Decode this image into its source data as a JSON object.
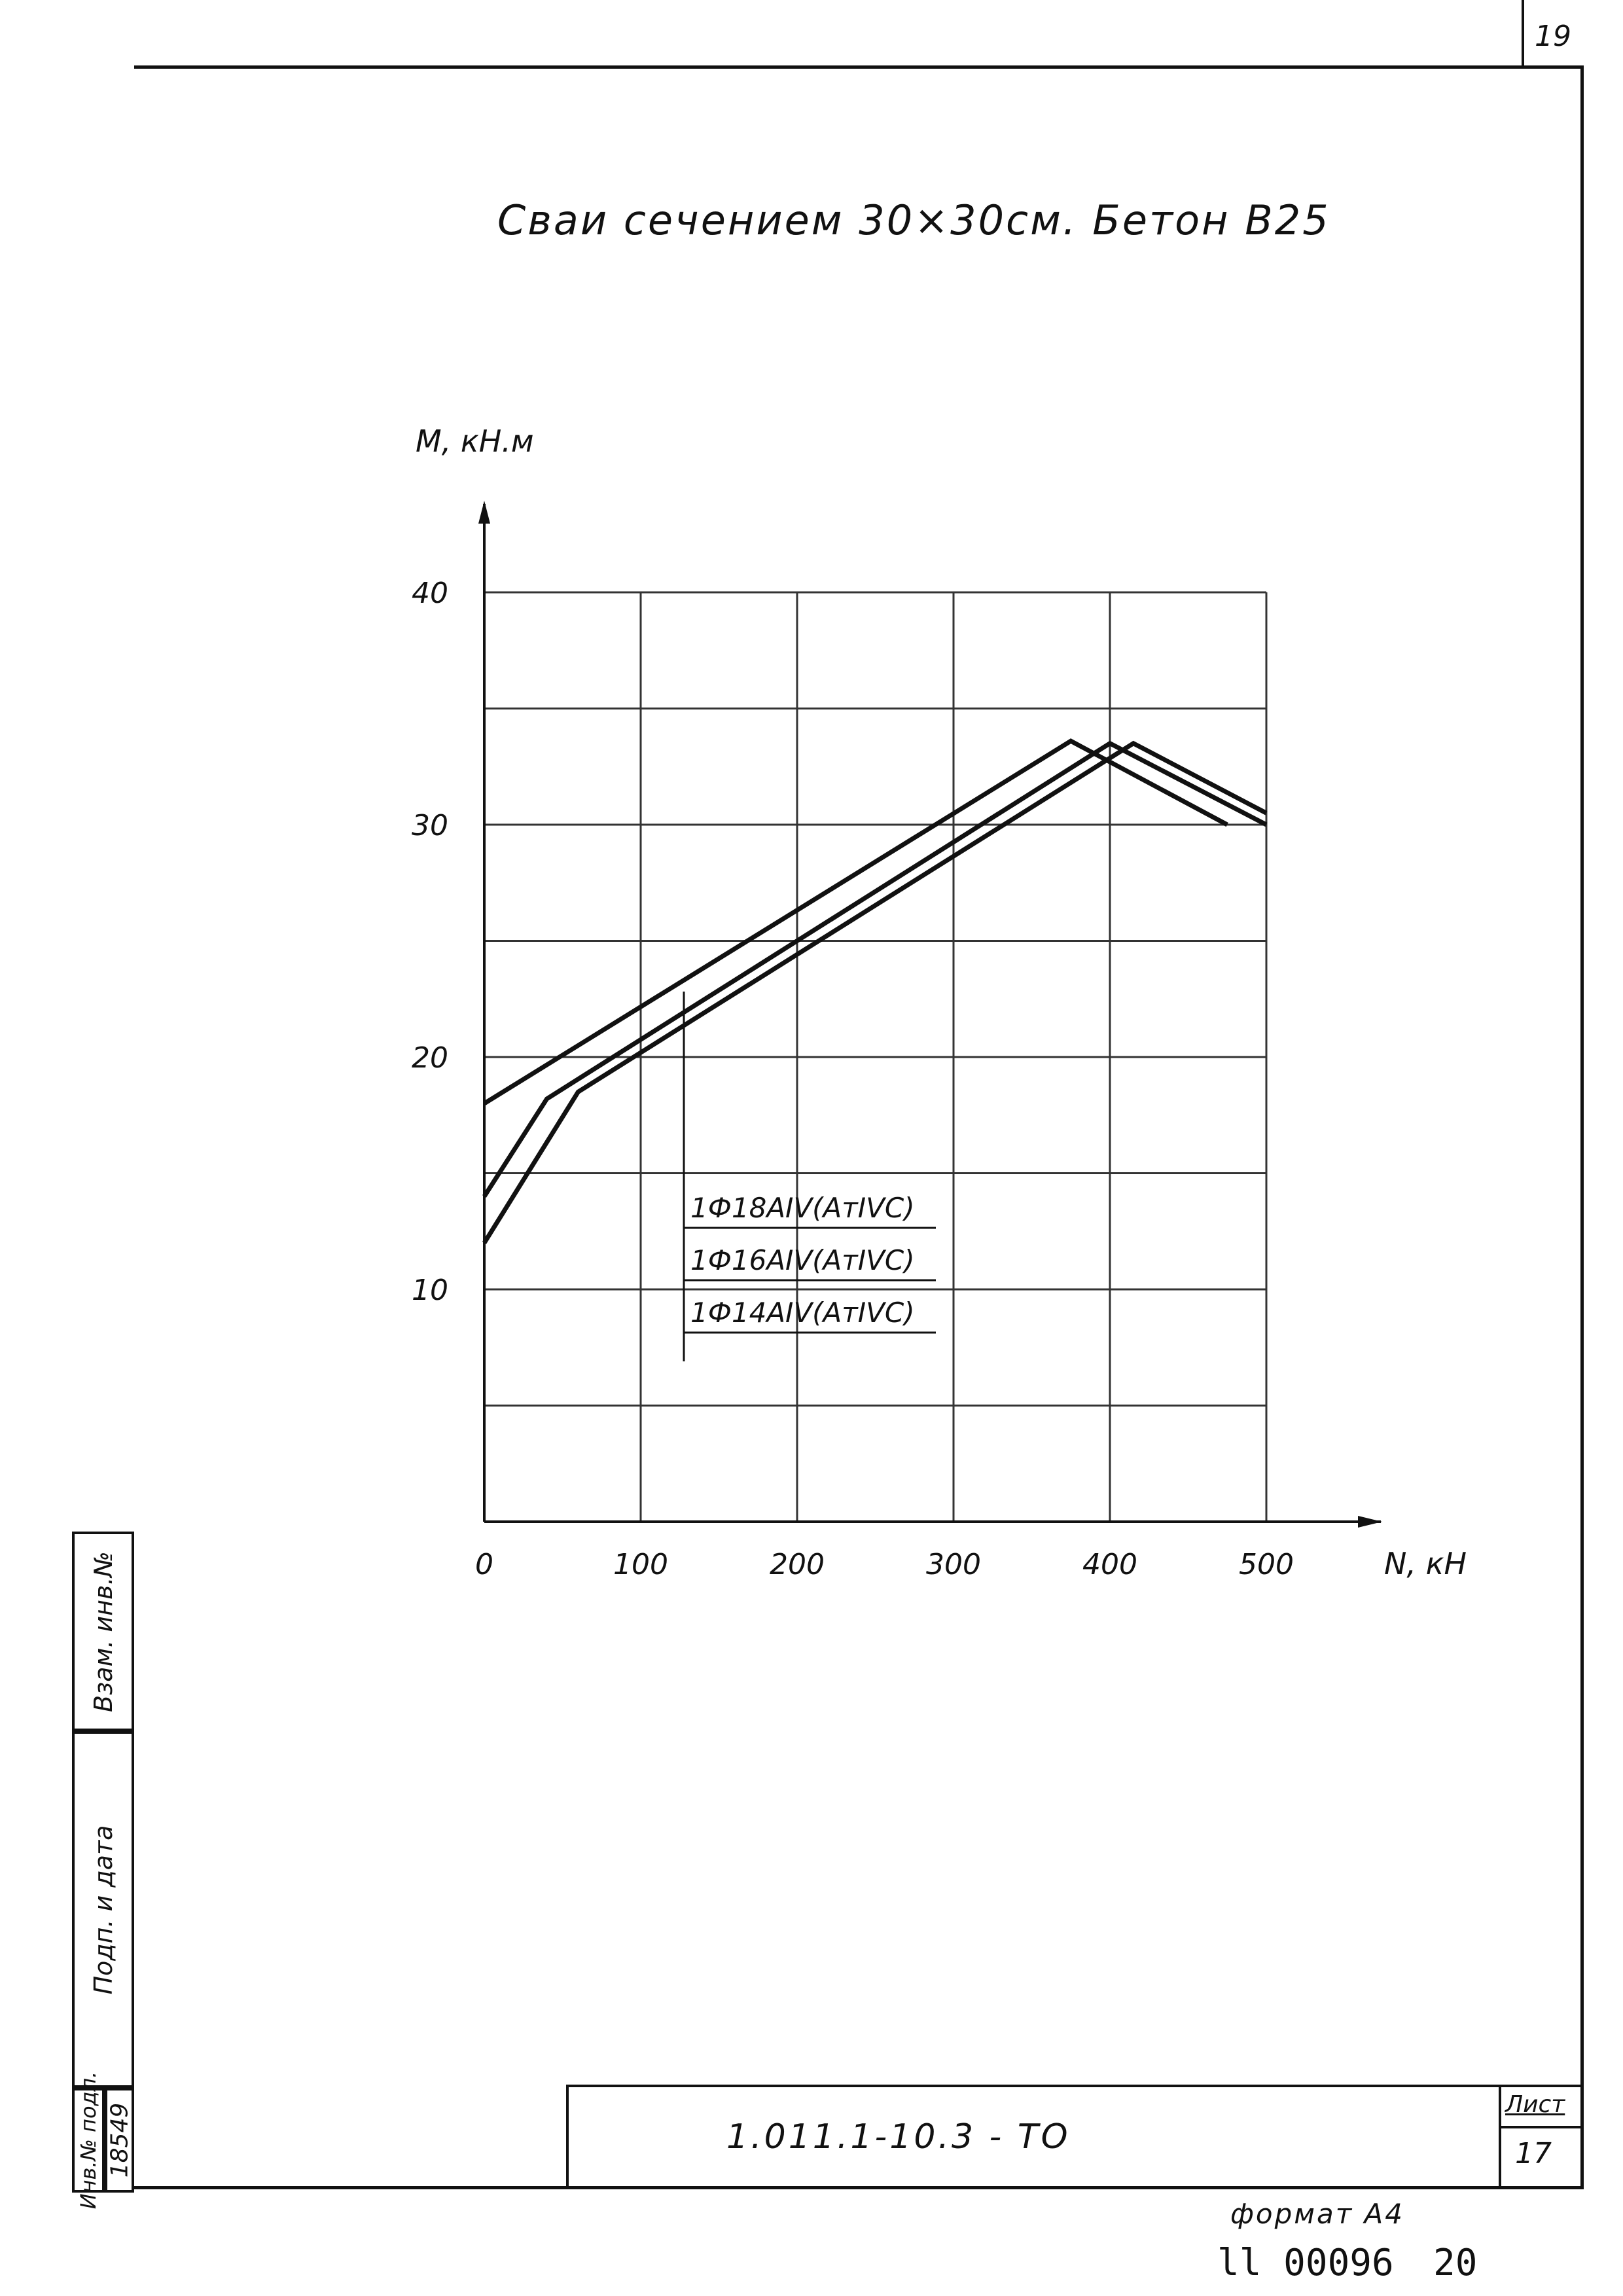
{
  "page": {
    "page_number": "19",
    "title": "Сваи сечением 30×30см. Бетон В25",
    "document_code": "1.011.1-10.3 -   ТО",
    "sheet_label": "Лист",
    "sheet_number": "17",
    "format_label": "формат А4",
    "archive_number": "ll 00096",
    "archive_sheet": "20"
  },
  "sidebar": {
    "inv_orig_label": "Инв.№ подл.",
    "inv_orig_value": "18549",
    "sign_date_label": "Подп. и дата",
    "replace_label": "Взам. инв.№"
  },
  "chart_data": {
    "type": "line",
    "xlabel": "N, кН",
    "ylabel": "M, кН.м",
    "xlim": [
      0,
      500
    ],
    "ylim": [
      0,
      40
    ],
    "xticks": [
      "0",
      "100",
      "200",
      "300",
      "400",
      "500"
    ],
    "yticks": [
      "10",
      "20",
      "30",
      "40"
    ],
    "grid": true,
    "series": [
      {
        "name": "1Ф18АIV(АтIVС)",
        "x": [
          0,
          375,
          475
        ],
        "y": [
          18,
          33.6,
          30
        ]
      },
      {
        "name": "1Ф16АIV(АтIVС)",
        "x": [
          0,
          40,
          400,
          500
        ],
        "y": [
          14,
          18.2,
          33.5,
          30
        ]
      },
      {
        "name": "1Ф14АIV(АтIVС)",
        "x": [
          0,
          60,
          415,
          500
        ],
        "y": [
          12,
          18.5,
          33.5,
          30.5
        ]
      }
    ],
    "colors": {
      "line": "#111111",
      "grid": "#333333"
    }
  }
}
